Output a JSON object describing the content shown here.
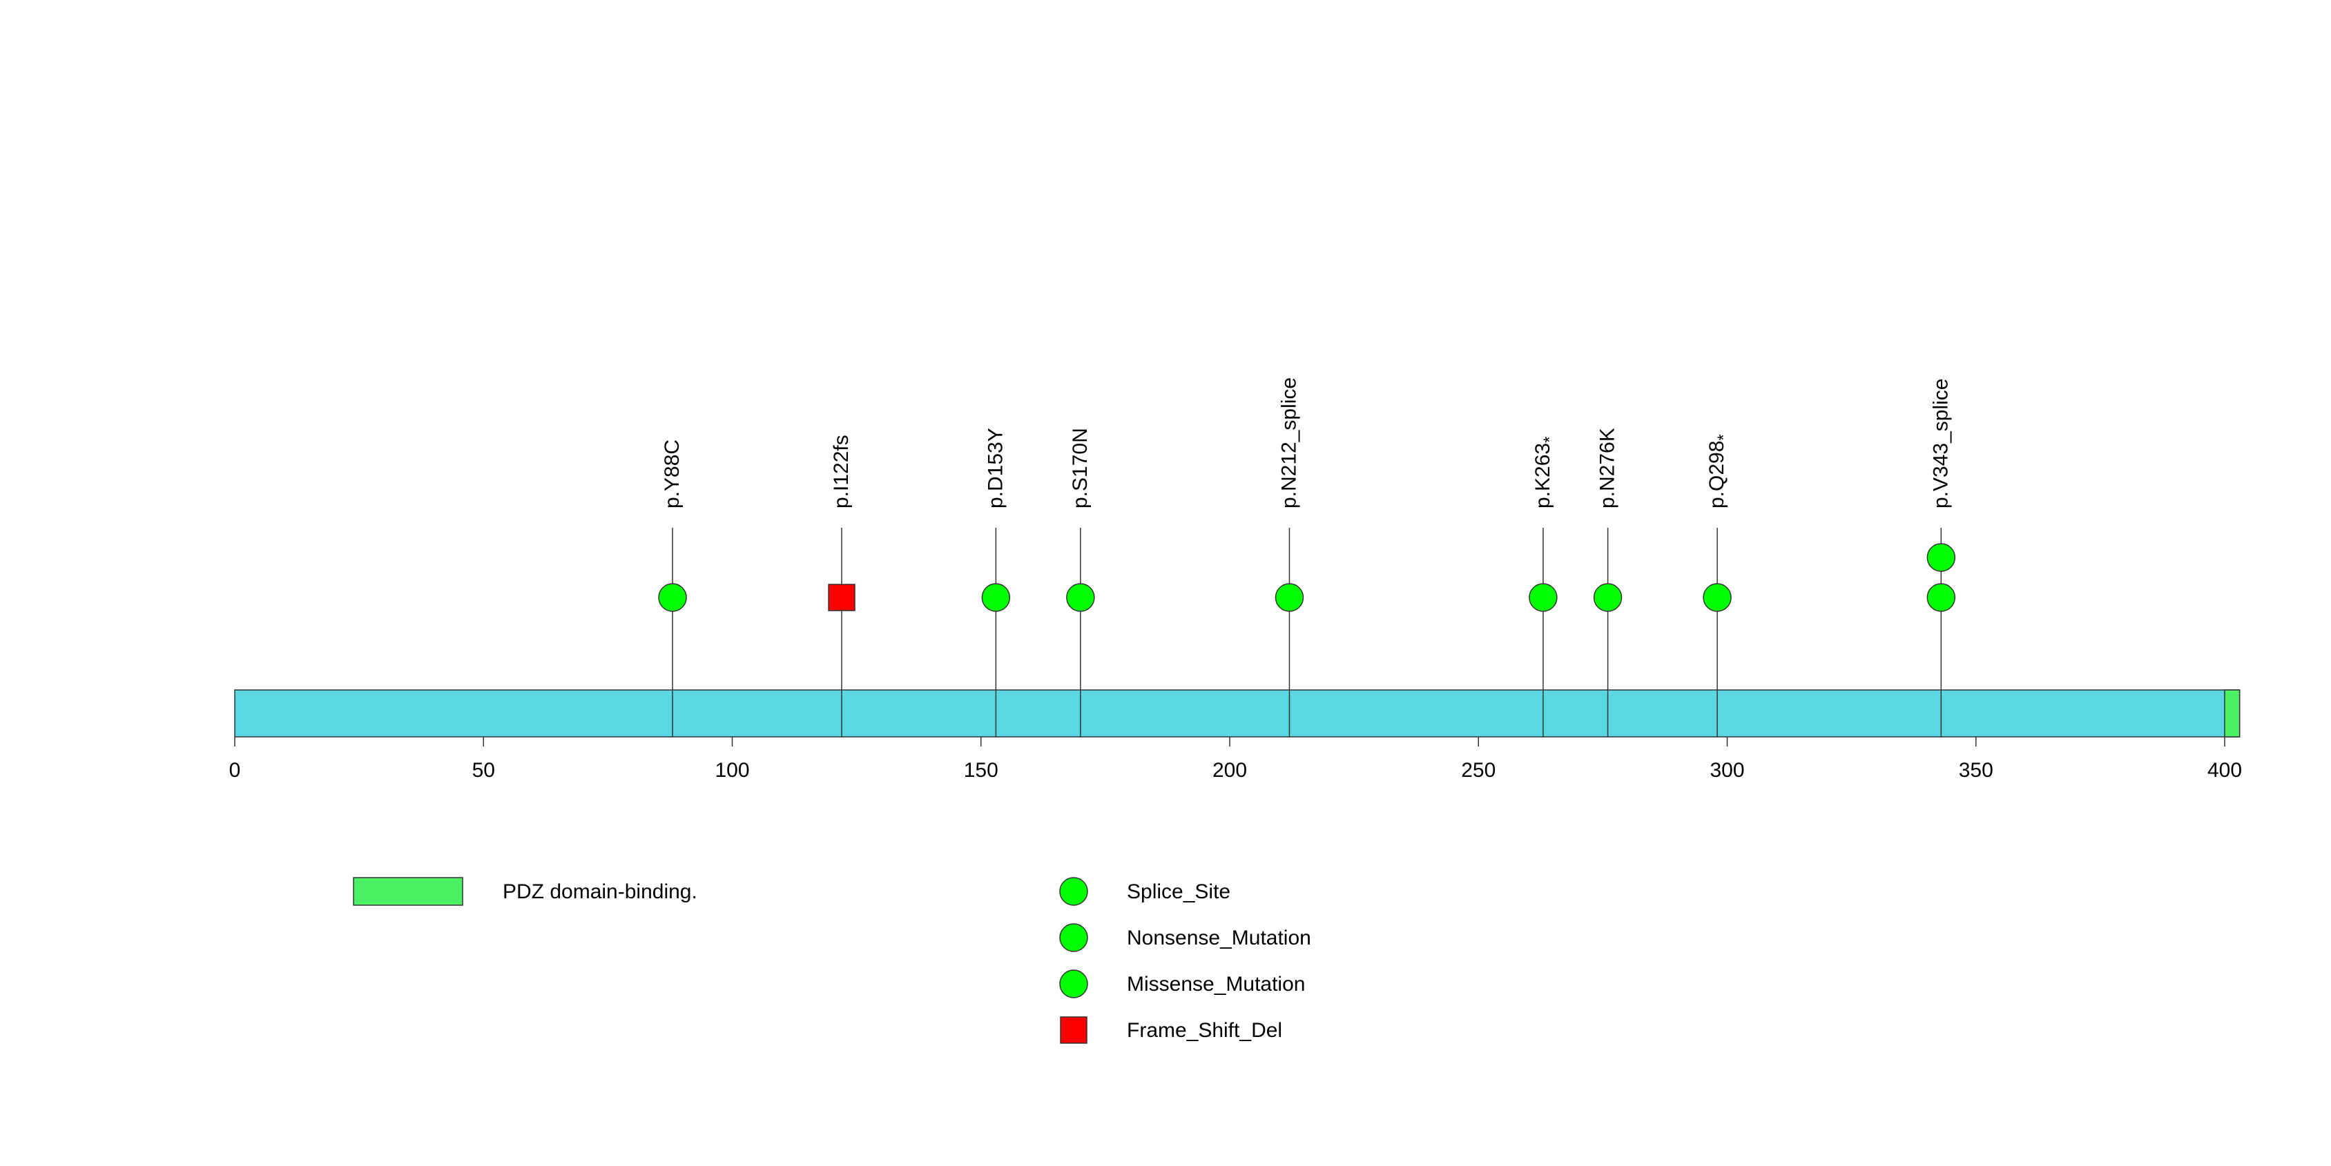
{
  "chart_data": {
    "type": "lollipop",
    "protein_length": 403,
    "x_ticks": [
      "0",
      "50",
      "100",
      "150",
      "200",
      "250",
      "300",
      "350",
      "400"
    ],
    "x_tick_values": [
      0,
      50,
      100,
      150,
      200,
      250,
      300,
      350,
      400
    ],
    "domains": [
      {
        "name": "PDZ domain-binding.",
        "start": 400,
        "end": 403,
        "color": "#4df166"
      }
    ],
    "mutations": [
      {
        "label": "p.Y88C",
        "position": 88,
        "count": 1,
        "shape": "circle",
        "color": "#00ff00"
      },
      {
        "label": "p.I122fs",
        "position": 122,
        "count": 1,
        "shape": "square",
        "color": "#ff0000"
      },
      {
        "label": "p.D153Y",
        "position": 153,
        "count": 1,
        "shape": "circle",
        "color": "#00ff00"
      },
      {
        "label": "p.S170N",
        "position": 170,
        "count": 1,
        "shape": "circle",
        "color": "#00ff00"
      },
      {
        "label": "p.N212_splice",
        "position": 212,
        "count": 1,
        "shape": "circle",
        "color": "#00ff00"
      },
      {
        "label": "p.K263",
        "suffix": "*",
        "position": 263,
        "count": 1,
        "shape": "circle",
        "color": "#00ff00"
      },
      {
        "label": "p.N276K",
        "position": 276,
        "count": 1,
        "shape": "circle",
        "color": "#00ff00"
      },
      {
        "label": "p.Q298",
        "suffix": "*",
        "position": 298,
        "count": 1,
        "shape": "circle",
        "color": "#00ff00"
      },
      {
        "label": "p.V343_splice",
        "position": 343,
        "count": 2,
        "shape": "circle",
        "color": "#00ff00"
      }
    ],
    "legend_domains": [
      {
        "name": "PDZ domain-binding.",
        "color": "#4df166"
      }
    ],
    "legend_types": [
      {
        "name": "Splice_Site",
        "shape": "circle",
        "color": "#00ff00"
      },
      {
        "name": "Nonsense_Mutation",
        "shape": "circle",
        "color": "#00ff00"
      },
      {
        "name": "Missense_Mutation",
        "shape": "circle",
        "color": "#00ff00"
      },
      {
        "name": "Frame_Shift_Del",
        "shape": "square",
        "color": "#ff0000"
      }
    ],
    "colors": {
      "protein_bar": "#5bd7e3",
      "domain": "#4df166",
      "circle": "#00ff00",
      "square": "#ff0000"
    }
  }
}
